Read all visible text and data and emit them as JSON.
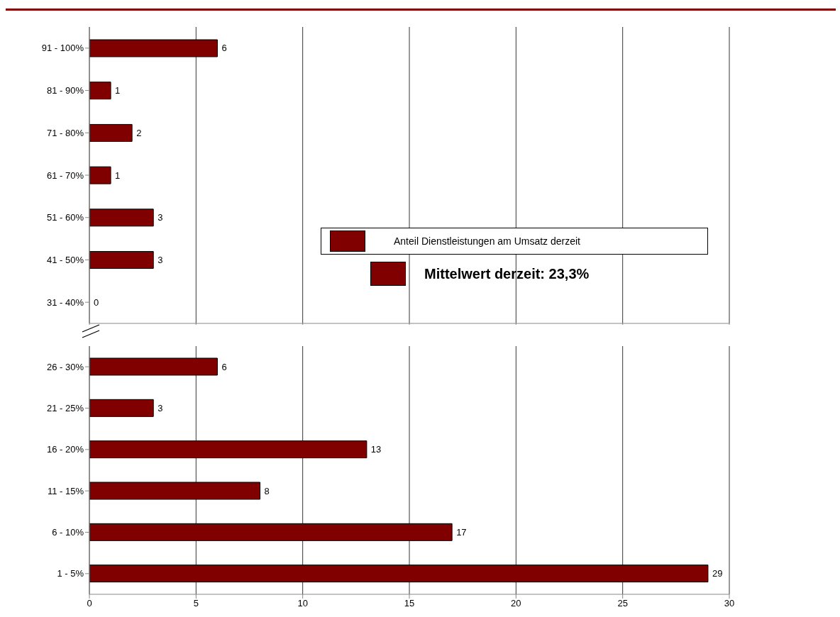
{
  "chart_data": [
    {
      "type": "bar",
      "orientation": "horizontal",
      "categories": [
        "91 - 100%",
        "81 - 90%",
        "71 - 80%",
        "61 - 70%",
        "51 - 60%",
        "41 - 50%",
        "31 - 40%"
      ],
      "series": [
        {
          "name": "Anteil Dienstleistungen am Umsatz derzeit",
          "color": "#800000",
          "values": [
            6,
            1,
            2,
            1,
            3,
            3,
            0
          ]
        }
      ],
      "xlim": [
        0,
        30
      ],
      "xticks": [
        0,
        5,
        10,
        15,
        20,
        25,
        30
      ],
      "tick_labels": "y",
      "grid": "x",
      "data_labels": true,
      "legend": "bottom right",
      "annotations": [
        "Mittelwert derzeit: 23,3%"
      ]
    },
    {
      "type": "bar",
      "orientation": "horizontal",
      "categories": [
        "26 - 30%",
        "21 - 25%",
        "16 - 20%",
        "11 - 15%",
        "6 - 10%",
        "1 - 5%"
      ],
      "series": [
        {
          "color": "#800000",
          "values": [
            6,
            3,
            13,
            8,
            17,
            29
          ]
        }
      ],
      "xlim": [
        0,
        30
      ],
      "xticks": [
        0,
        5,
        10,
        15,
        20,
        25,
        30
      ],
      "grid": "x",
      "data_labels": true
    }
  ]
}
